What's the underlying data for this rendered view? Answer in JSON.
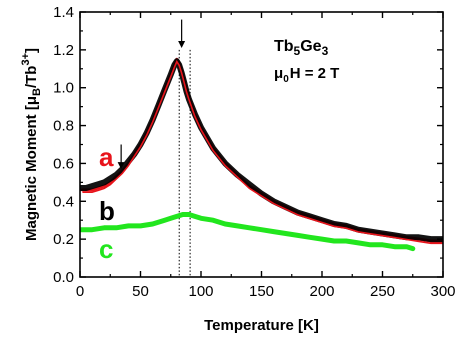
{
  "chart_data": {
    "type": "line",
    "title": "",
    "xlabel": "Temperature [K]",
    "ylabel_main": "Magnetic Moment [μ",
    "ylabel_sub": "B",
    "ylabel_mid": "/Tb",
    "ylabel_sup": "3+",
    "ylabel_end": "]",
    "xlim": [
      0,
      300
    ],
    "ylim": [
      0.0,
      1.4
    ],
    "xticks": [
      0,
      50,
      100,
      150,
      200,
      250,
      300
    ],
    "yticks": [
      0.0,
      0.2,
      0.4,
      0.6,
      0.8,
      1.0,
      1.2,
      1.4
    ],
    "xtick_labels": [
      "0",
      "50",
      "100",
      "150",
      "200",
      "250",
      "300"
    ],
    "ytick_labels": [
      "0.0",
      "0.2",
      "0.4",
      "0.6",
      "0.8",
      "1.0",
      "1.2",
      "1.4"
    ],
    "grid": false,
    "annotation": {
      "compound_main": "Tb",
      "compound_sub1": "5",
      "compound_mid": "Ge",
      "compound_sub2": "3",
      "field_mu": "μ",
      "field_sub": "0",
      "field_rest": "H = 2 T"
    },
    "series": [
      {
        "name": "a",
        "color": "#e8141b",
        "x": [
          2,
          5,
          10,
          15,
          20,
          25,
          30,
          35,
          40,
          45,
          50,
          55,
          60,
          65,
          70,
          75,
          78,
          80,
          82,
          84,
          86,
          88,
          90,
          95,
          100,
          110,
          120,
          130,
          140,
          150,
          160,
          170,
          180,
          190,
          200,
          210,
          220,
          230,
          240,
          250,
          260,
          270,
          280,
          290,
          300
        ],
        "y": [
          0.46,
          0.46,
          0.46,
          0.47,
          0.48,
          0.5,
          0.53,
          0.56,
          0.6,
          0.65,
          0.7,
          0.76,
          0.83,
          0.91,
          0.99,
          1.07,
          1.12,
          1.15,
          1.13,
          1.09,
          1.04,
          0.99,
          0.95,
          0.86,
          0.79,
          0.68,
          0.6,
          0.54,
          0.48,
          0.44,
          0.4,
          0.37,
          0.34,
          0.32,
          0.3,
          0.28,
          0.27,
          0.25,
          0.24,
          0.23,
          0.22,
          0.21,
          0.2,
          0.19,
          0.19
        ]
      },
      {
        "name": "b",
        "color": "#000000",
        "x": [
          0,
          5,
          10,
          15,
          20,
          25,
          30,
          35,
          40,
          45,
          50,
          55,
          60,
          65,
          70,
          75,
          78,
          80,
          82,
          84,
          86,
          88,
          90,
          95,
          100,
          110,
          120,
          130,
          140,
          150,
          160,
          170,
          180,
          190,
          200,
          210,
          220,
          230,
          240,
          250,
          260,
          270,
          280,
          290,
          300
        ],
        "y": [
          0.47,
          0.47,
          0.48,
          0.49,
          0.5,
          0.52,
          0.54,
          0.57,
          0.61,
          0.65,
          0.7,
          0.76,
          0.83,
          0.91,
          0.99,
          1.07,
          1.12,
          1.14,
          1.12,
          1.08,
          1.03,
          0.98,
          0.94,
          0.86,
          0.79,
          0.68,
          0.6,
          0.54,
          0.49,
          0.44,
          0.4,
          0.37,
          0.34,
          0.32,
          0.3,
          0.28,
          0.27,
          0.25,
          0.24,
          0.23,
          0.22,
          0.21,
          0.21,
          0.2,
          0.2
        ]
      },
      {
        "name": "c",
        "color": "#22e61e",
        "x": [
          0,
          10,
          20,
          30,
          40,
          50,
          60,
          70,
          75,
          80,
          85,
          90,
          95,
          100,
          110,
          120,
          130,
          140,
          150,
          160,
          170,
          180,
          190,
          200,
          210,
          220,
          230,
          240,
          250,
          260,
          270,
          275
        ],
        "y": [
          0.25,
          0.25,
          0.26,
          0.26,
          0.27,
          0.27,
          0.28,
          0.3,
          0.31,
          0.32,
          0.33,
          0.33,
          0.32,
          0.31,
          0.3,
          0.28,
          0.27,
          0.26,
          0.25,
          0.24,
          0.23,
          0.22,
          0.21,
          0.2,
          0.19,
          0.19,
          0.18,
          0.17,
          0.17,
          0.16,
          0.16,
          0.15
        ]
      }
    ],
    "vlines": [
      82,
      91
    ],
    "arrows": [
      {
        "x": 34,
        "y_tip": 0.57,
        "y_tail": 0.7
      },
      {
        "x": 84,
        "y_tip": 1.21,
        "y_tail": 1.36
      }
    ]
  }
}
